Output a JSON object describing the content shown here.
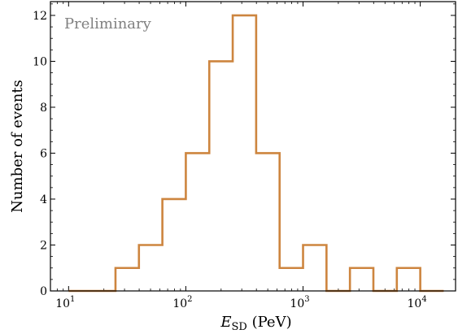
{
  "chart_data": {
    "type": "histogram",
    "x_scale": "log",
    "x_unit": "PeV",
    "xlabel_symbol": "E",
    "xlabel_subscript": "SD",
    "xlabel_unit": " (PeV)",
    "ylabel": "Number of events",
    "xlim": [
      7,
      20000
    ],
    "ylim": [
      0,
      12.6
    ],
    "x_ticks": [
      {
        "value": 10,
        "mantissa": "10",
        "exponent": "1"
      },
      {
        "value": 100,
        "mantissa": "10",
        "exponent": "2"
      },
      {
        "value": 1000,
        "mantissa": "10",
        "exponent": "3"
      },
      {
        "value": 10000,
        "mantissa": "10",
        "exponent": "4"
      }
    ],
    "y_ticks": [
      {
        "value": 0,
        "label": "0"
      },
      {
        "value": 2,
        "label": "2"
      },
      {
        "value": 4,
        "label": "4"
      },
      {
        "value": 6,
        "label": "6"
      },
      {
        "value": 8,
        "label": "8"
      },
      {
        "value": 10,
        "label": "10"
      },
      {
        "value": 12,
        "label": "12"
      }
    ],
    "bins": [
      {
        "x0": 10,
        "x1": 15.85,
        "count": 0
      },
      {
        "x0": 15.85,
        "x1": 25.12,
        "count": 0
      },
      {
        "x0": 25.12,
        "x1": 39.81,
        "count": 1
      },
      {
        "x0": 39.81,
        "x1": 63.1,
        "count": 2
      },
      {
        "x0": 63.1,
        "x1": 100,
        "count": 4
      },
      {
        "x0": 100,
        "x1": 158.5,
        "count": 6
      },
      {
        "x0": 158.5,
        "x1": 251.2,
        "count": 10
      },
      {
        "x0": 251.2,
        "x1": 398.1,
        "count": 12
      },
      {
        "x0": 398.1,
        "x1": 631,
        "count": 6
      },
      {
        "x0": 631,
        "x1": 1000,
        "count": 1
      },
      {
        "x0": 1000,
        "x1": 1585,
        "count": 2
      },
      {
        "x0": 1585,
        "x1": 2512,
        "count": 0
      },
      {
        "x0": 2512,
        "x1": 3981,
        "count": 1
      },
      {
        "x0": 3981,
        "x1": 6310,
        "count": 0
      },
      {
        "x0": 6310,
        "x1": 10000,
        "count": 1
      },
      {
        "x0": 10000,
        "x1": 15850,
        "count": 0
      }
    ],
    "line_color": "#cd853f",
    "annotation": "Preliminary",
    "annotation_color": "#808080",
    "grid": false,
    "ticks_direction": "in"
  }
}
